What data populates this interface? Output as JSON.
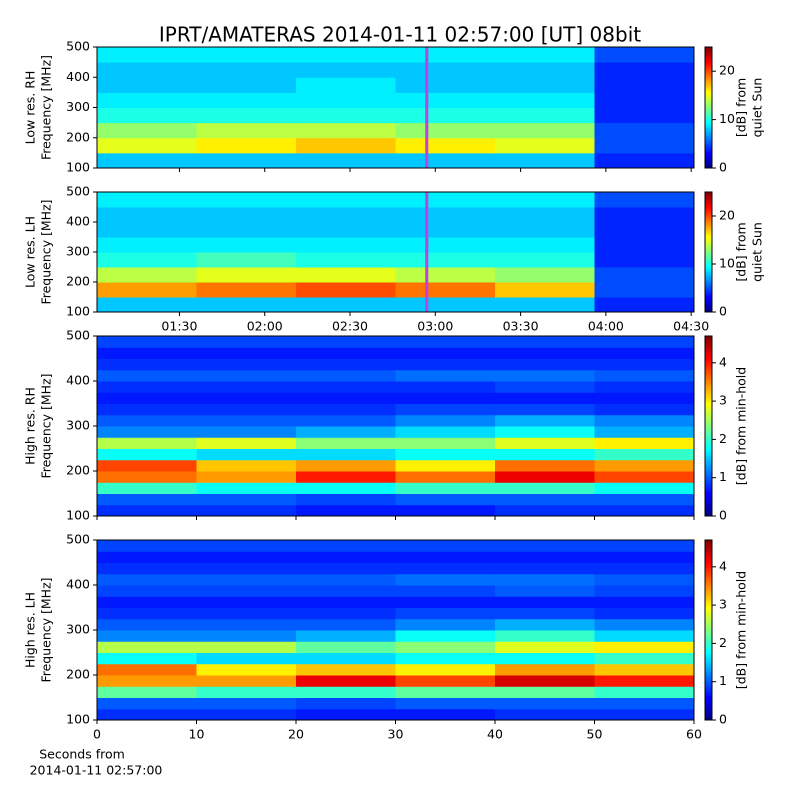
{
  "title": "IPRT/AMATERAS 2014-01-11 02:57:00 [UT]   08bit",
  "xlabel": [
    "Seconds from",
    "2014-01-11 02:57:00"
  ],
  "chart_data": [
    {
      "type": "heatmap",
      "colormap": "jet",
      "ylabel": [
        "Low res. RH",
        "Frequency [MHz]"
      ],
      "xlim": [
        61,
        271
      ],
      "xticks": [
        90,
        120,
        150,
        180,
        210,
        240,
        270
      ],
      "xtick_labels": false,
      "x_bins": [
        61,
        96,
        131,
        166,
        201,
        236,
        271
      ],
      "ylim": [
        100,
        500
      ],
      "yticks": [
        100,
        200,
        300,
        400,
        500
      ],
      "y_bins": [
        100,
        150,
        200,
        250,
        300,
        350,
        400,
        450,
        500
      ],
      "z": [
        [
          8,
          8,
          8,
          8,
          8,
          4
        ],
        [
          15,
          16,
          17,
          16,
          15,
          5
        ],
        [
          13,
          14,
          14,
          13,
          13,
          5
        ],
        [
          10,
          10,
          10,
          10,
          10,
          4
        ],
        [
          9,
          9,
          9,
          9,
          9,
          4
        ],
        [
          8,
          8,
          9,
          8,
          8,
          4
        ],
        [
          8,
          8,
          8,
          8,
          8,
          4
        ],
        [
          9,
          9,
          9,
          9,
          9,
          5
        ]
      ],
      "zlim": [
        0,
        25
      ],
      "zticks": [
        0,
        10,
        20
      ],
      "colorbar_label": [
        "[dB] from",
        "quiet Sun"
      ],
      "vline": 177,
      "vline_color": "#c040e0"
    },
    {
      "type": "heatmap",
      "colormap": "jet",
      "ylabel": [
        "Low res. LH",
        "Frequency [MHz]"
      ],
      "xlim": [
        61,
        271
      ],
      "xticks": [
        {
          "value": 90,
          "label": "01:30"
        },
        {
          "value": 120,
          "label": "02:00"
        },
        {
          "value": 150,
          "label": "02:30"
        },
        {
          "value": 180,
          "label": "03:00"
        },
        {
          "value": 210,
          "label": "03:30"
        },
        {
          "value": 240,
          "label": "04:00"
        },
        {
          "value": 270,
          "label": "04:30"
        }
      ],
      "xtick_labels": true,
      "x_bins": [
        61,
        96,
        131,
        166,
        201,
        236,
        271
      ],
      "ylim": [
        100,
        500
      ],
      "yticks": [
        100,
        200,
        300,
        400,
        500
      ],
      "y_bins": [
        100,
        150,
        200,
        250,
        300,
        350,
        400,
        450,
        500
      ],
      "z": [
        [
          8,
          8,
          8,
          8,
          8,
          4
        ],
        [
          18,
          19,
          20,
          19,
          17,
          5
        ],
        [
          14,
          15,
          15,
          14,
          13,
          5
        ],
        [
          10,
          11,
          10,
          10,
          10,
          4
        ],
        [
          9,
          9,
          9,
          9,
          9,
          4
        ],
        [
          8,
          8,
          8,
          8,
          8,
          4
        ],
        [
          8,
          8,
          8,
          8,
          8,
          4
        ],
        [
          9,
          9,
          9,
          9,
          9,
          5
        ]
      ],
      "zlim": [
        0,
        25
      ],
      "zticks": [
        0,
        10,
        20
      ],
      "colorbar_label": [
        "[dB] from",
        "quiet Sun"
      ],
      "vline": 177,
      "vline_color": "#c040e0"
    },
    {
      "type": "heatmap",
      "colormap": "jet",
      "ylabel": [
        "High res. RH",
        "Frequency [MHz]"
      ],
      "xlim": [
        0,
        60
      ],
      "xticks": [
        0,
        10,
        20,
        30,
        40,
        50,
        60
      ],
      "xtick_labels": false,
      "x_bins": [
        0,
        10,
        20,
        30,
        40,
        50,
        60
      ],
      "ylim": [
        100,
        500
      ],
      "yticks": [
        100,
        200,
        300,
        400,
        500
      ],
      "y_bins": [
        100,
        125,
        150,
        175,
        200,
        225,
        250,
        275,
        300,
        325,
        350,
        375,
        400,
        425,
        450,
        475,
        500
      ],
      "z": [
        [
          0.8,
          0.8,
          0.7,
          0.7,
          0.8,
          0.8
        ],
        [
          1.0,
          1.0,
          0.9,
          1.0,
          1.0,
          1.0
        ],
        [
          2.0,
          1.8,
          1.8,
          2.0,
          2.0,
          1.8
        ],
        [
          3.6,
          3.4,
          4.0,
          3.6,
          4.2,
          3.8
        ],
        [
          3.8,
          3.2,
          3.4,
          3.0,
          3.6,
          3.4
        ],
        [
          1.8,
          1.6,
          1.6,
          1.8,
          1.8,
          2.0
        ],
        [
          2.6,
          2.8,
          2.4,
          2.4,
          2.8,
          3.0
        ],
        [
          1.2,
          1.2,
          1.4,
          1.6,
          1.8,
          1.4
        ],
        [
          1.0,
          1.0,
          1.0,
          1.2,
          1.4,
          1.2
        ],
        [
          0.8,
          0.8,
          0.8,
          0.9,
          0.9,
          0.8
        ],
        [
          0.7,
          0.7,
          0.7,
          0.7,
          0.7,
          0.7
        ],
        [
          0.8,
          0.8,
          0.8,
          0.8,
          0.9,
          0.8
        ],
        [
          1.0,
          1.0,
          1.0,
          1.1,
          1.1,
          1.0
        ],
        [
          0.8,
          0.8,
          0.8,
          0.8,
          0.8,
          0.8
        ],
        [
          0.7,
          0.7,
          0.7,
          0.7,
          0.7,
          0.7
        ],
        [
          0.9,
          0.9,
          0.9,
          0.9,
          0.9,
          0.9
        ]
      ],
      "zlim": [
        0,
        4.7
      ],
      "zticks": [
        0,
        1,
        2,
        3,
        4
      ],
      "colorbar_label": [
        "[dB] from min-hold"
      ]
    },
    {
      "type": "heatmap",
      "colormap": "jet",
      "ylabel": [
        "High res. LH",
        "Frequency [MHz]"
      ],
      "xlim": [
        0,
        60
      ],
      "xticks": [
        0,
        10,
        20,
        30,
        40,
        50,
        60
      ],
      "xtick_labels": true,
      "x_bins": [
        0,
        10,
        20,
        30,
        40,
        50,
        60
      ],
      "ylim": [
        100,
        500
      ],
      "yticks": [
        100,
        200,
        300,
        400,
        500
      ],
      "y_bins": [
        100,
        125,
        150,
        175,
        200,
        225,
        250,
        275,
        300,
        325,
        350,
        375,
        400,
        425,
        450,
        475,
        500
      ],
      "z": [
        [
          0.8,
          0.8,
          0.7,
          0.7,
          0.8,
          0.8
        ],
        [
          1.0,
          1.0,
          0.9,
          1.0,
          1.0,
          1.0
        ],
        [
          2.2,
          2.0,
          2.0,
          2.2,
          2.2,
          2.0
        ],
        [
          3.4,
          3.4,
          4.2,
          3.8,
          4.3,
          4.0
        ],
        [
          3.6,
          3.0,
          3.2,
          3.0,
          3.4,
          3.2
        ],
        [
          1.8,
          1.6,
          1.6,
          1.8,
          1.8,
          2.0
        ],
        [
          2.6,
          2.6,
          2.2,
          2.4,
          2.8,
          3.0
        ],
        [
          1.2,
          1.2,
          1.4,
          1.8,
          2.0,
          1.6
        ],
        [
          1.0,
          1.0,
          1.0,
          1.2,
          1.4,
          1.2
        ],
        [
          0.8,
          0.8,
          0.8,
          0.9,
          0.9,
          0.8
        ],
        [
          0.7,
          0.7,
          0.7,
          0.7,
          0.7,
          0.7
        ],
        [
          0.9,
          0.9,
          0.9,
          0.9,
          1.0,
          0.9
        ],
        [
          1.0,
          1.0,
          1.0,
          1.1,
          1.1,
          1.0
        ],
        [
          0.8,
          0.8,
          0.8,
          0.8,
          0.8,
          0.8
        ],
        [
          0.7,
          0.7,
          0.7,
          0.7,
          0.7,
          0.7
        ],
        [
          0.9,
          0.9,
          0.9,
          0.9,
          0.9,
          0.9
        ]
      ],
      "zlim": [
        0,
        4.7
      ],
      "zticks": [
        0,
        1,
        2,
        3,
        4
      ],
      "colorbar_label": [
        "[dB] from min-hold"
      ]
    }
  ]
}
